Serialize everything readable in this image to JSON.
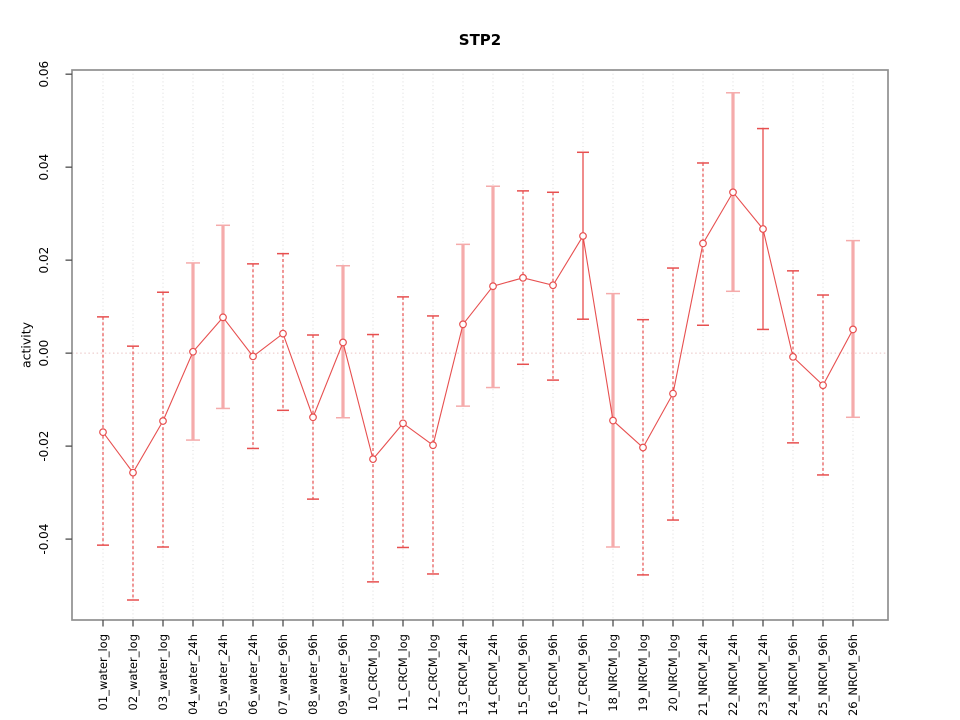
{
  "figure": {
    "title": "STP2",
    "ylabel": "activity"
  },
  "chart_data": {
    "type": "scatter",
    "title": "STP2",
    "xlabel": "",
    "ylabel": "activity",
    "ylim": [
      -0.0574,
      0.0609
    ],
    "yticks": [
      -0.04,
      -0.02,
      0.0,
      0.02,
      0.04,
      0.06
    ],
    "ytick_labels": [
      "-0.04",
      "-0.02",
      "0.00",
      "0.02",
      "0.04",
      "0.06"
    ],
    "grid": "vertical-dotted",
    "zero_line": true,
    "legend_position": "none",
    "marker": "open-circle",
    "categories": [
      "01_water_log",
      "02_water_log",
      "03_water_log",
      "04_water_24h",
      "05_water_24h",
      "06_water_24h",
      "07_water_96h",
      "08_water_96h",
      "09_water_96h",
      "10_CRCM_log",
      "11_CRCM_log",
      "12_CRCM_log",
      "13_CRCM_24h",
      "14_CRCM_24h",
      "15_CRCM_96h",
      "16_CRCM_96h",
      "17_CRCM_96h",
      "18_NRCM_log",
      "19_NRCM_log",
      "20_NRCM_log",
      "21_NRCM_24h",
      "22_NRCM_24h",
      "23_NRCM_24h",
      "24_NRCM_96h",
      "25_NRCM_96h",
      "26_NRCM_96h"
    ],
    "series": [
      {
        "name": "activity",
        "values": [
          -0.017,
          -0.0257,
          -0.0146,
          0.0003,
          0.0077,
          -0.0007,
          0.0042,
          -0.0138,
          0.0023,
          -0.0228,
          -0.0151,
          -0.0198,
          0.0062,
          0.0144,
          0.0162,
          0.0146,
          0.0252,
          -0.0145,
          -0.0203,
          -0.0087,
          0.0236,
          0.0346,
          0.0267,
          -0.0008,
          -0.0069,
          0.0051
        ],
        "err_high": [
          0.0078,
          0.0015,
          0.0131,
          0.0194,
          0.0275,
          0.0192,
          0.0214,
          0.0039,
          0.0188,
          0.004,
          0.0121,
          0.008,
          0.0234,
          0.0359,
          0.0349,
          0.0346,
          0.0432,
          0.0128,
          0.0072,
          0.0183,
          0.0409,
          0.056,
          0.0483,
          0.0177,
          0.0125,
          0.0242
        ],
        "err_low": [
          -0.0413,
          -0.0531,
          -0.0417,
          -0.0187,
          -0.0119,
          -0.0205,
          -0.0123,
          -0.0314,
          -0.0139,
          -0.0492,
          -0.0418,
          -0.0475,
          -0.0114,
          -0.0074,
          -0.0024,
          -0.0058,
          0.0073,
          -0.0417,
          -0.0477,
          -0.0359,
          0.006,
          0.0133,
          0.0051,
          -0.0193,
          -0.0262,
          -0.0138
        ],
        "bar_styles": [
          "dashed",
          "dashed",
          "dashed",
          "pink",
          "pink",
          "dashed",
          "dashed",
          "dashed",
          "pink",
          "dashed",
          "dashed",
          "dashed",
          "pink",
          "pink",
          "dashed",
          "dashed",
          "solid",
          "pink",
          "dashed",
          "dashed",
          "dashed",
          "pink",
          "solid",
          "dashed",
          "dashed",
          "pink"
        ]
      }
    ],
    "colors": {
      "line": "#e74f4f",
      "pink_bar": "#f5abab",
      "grid": "#dcdcdc",
      "zero_line": "#eac3c3",
      "box": "#8f8f8f",
      "tick": "#4d4d4d",
      "text": "#000000"
    }
  }
}
